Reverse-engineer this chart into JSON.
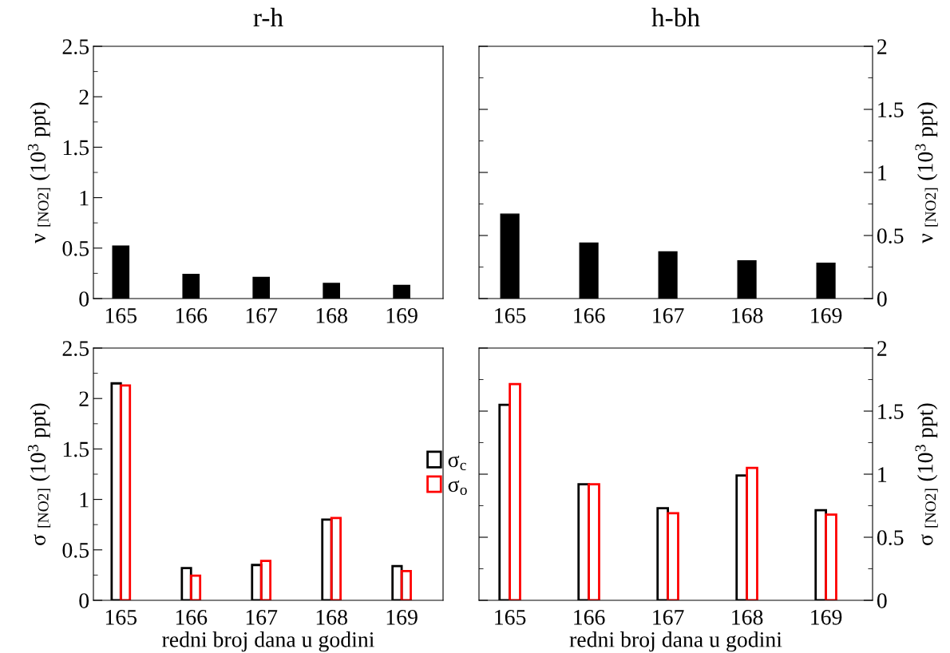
{
  "chart_data": [
    {
      "type": "bar",
      "title": "r-h",
      "ylabel": "ν $_{[NO2]}$ (10$^{3}$ ppt)",
      "categories": [
        "165",
        "166",
        "167",
        "168",
        "169"
      ],
      "ylim": [
        0,
        2.5
      ],
      "yticks": [
        0,
        0.5,
        1,
        1.5,
        2,
        2.5
      ],
      "series": [
        {
          "color": "#000000",
          "values": [
            0.52,
            0.24,
            0.21,
            0.15,
            0.13
          ]
        }
      ]
    },
    {
      "type": "bar",
      "title": "h-bh",
      "y2label": "ν $_{[NO2]}$ (10$^{3}$ ppt)",
      "categories": [
        "165",
        "166",
        "167",
        "168",
        "169"
      ],
      "y2lim": [
        0,
        2
      ],
      "y2ticks": [
        0,
        0.5,
        1,
        1.5,
        2
      ],
      "series": [
        {
          "color": "#000000",
          "axis": "y2",
          "values": [
            0.67,
            0.44,
            0.37,
            0.3,
            0.28
          ]
        }
      ]
    },
    {
      "type": "bar",
      "xlabel": "redni broj dana u godini",
      "ylabel": "σ $_{[NO2]}$ (10$^{3}$ ppt)",
      "categories": [
        "165",
        "166",
        "167",
        "168",
        "169"
      ],
      "ylim": [
        0,
        2.5
      ],
      "yticks": [
        0,
        0.5,
        1,
        1.5,
        2,
        2.5
      ],
      "series": [
        {
          "color": "#000000",
          "values": [
            2.15,
            0.32,
            0.35,
            0.8,
            0.34
          ]
        },
        {
          "color": "#ff0000",
          "values": [
            2.13,
            0.245,
            0.39,
            0.815,
            0.29
          ]
        }
      ]
    },
    {
      "type": "bar",
      "xlabel": "redni broj dana u godini",
      "y2label": "σ $_{[NO2]}$ (10$^{3}$ ppt)",
      "categories": [
        "165",
        "166",
        "167",
        "168",
        "169"
      ],
      "y2lim": [
        0,
        2
      ],
      "y2ticks": [
        0,
        0.5,
        1,
        1.5,
        2
      ],
      "legend": "left",
      "series": [
        {
          "name": "σ$_{c}$",
          "color": "#000000",
          "axis": "y2",
          "values": [
            1.55,
            0.92,
            0.73,
            0.99,
            0.715
          ]
        },
        {
          "name": "σ$_{o}$",
          "color": "#ff0000",
          "axis": "y2",
          "values": [
            1.715,
            0.92,
            0.69,
            1.05,
            0.68
          ]
        }
      ]
    }
  ]
}
